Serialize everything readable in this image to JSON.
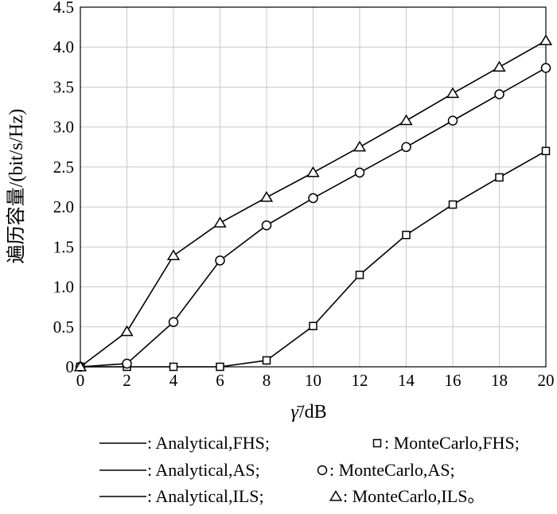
{
  "chart_data": {
    "type": "line",
    "title": "",
    "xlabel_symbol": "γ̄",
    "xlabel_unit": "/dB",
    "ylabel": "遍历容量/(bit/s/Hz)",
    "xlim": [
      0,
      20
    ],
    "ylim": [
      0,
      4.5
    ],
    "grid": true,
    "x_ticks": [
      "0",
      "2",
      "4",
      "6",
      "8",
      "10",
      "12",
      "14",
      "16",
      "18",
      "20"
    ],
    "y_ticks": [
      "0",
      "0.5",
      "1.0",
      "1.5",
      "2.0",
      "2.5",
      "3.0",
      "3.5",
      "4.0",
      "4.5"
    ],
    "x": [
      0,
      2,
      4,
      6,
      8,
      10,
      12,
      14,
      16,
      18,
      20
    ],
    "series": [
      {
        "key": "fhs",
        "marker": "square",
        "values": [
          0,
          0,
          0,
          0,
          0.08,
          0.51,
          1.15,
          1.65,
          2.03,
          2.37,
          2.7
        ]
      },
      {
        "key": "as",
        "marker": "circle",
        "values": [
          0,
          0.04,
          0.56,
          1.33,
          1.77,
          2.11,
          2.43,
          2.75,
          3.08,
          3.41,
          3.74
        ]
      },
      {
        "key": "ils",
        "marker": "triangle",
        "values": [
          0,
          0.44,
          1.39,
          1.8,
          2.12,
          2.43,
          2.75,
          3.08,
          3.42,
          3.75,
          4.08
        ]
      }
    ],
    "legend": [
      {
        "line_label": ": Analytical,FHS;",
        "marker": "square",
        "marker_label": ": MonteCarlo,FHS;"
      },
      {
        "line_label": ": Analytical,AS;",
        "marker": "circle",
        "marker_label": ": MonteCarlo,AS;"
      },
      {
        "line_label": ": Analytical,ILS;",
        "marker": "triangle",
        "marker_label": ": MonteCarlo,ILS。"
      }
    ]
  }
}
